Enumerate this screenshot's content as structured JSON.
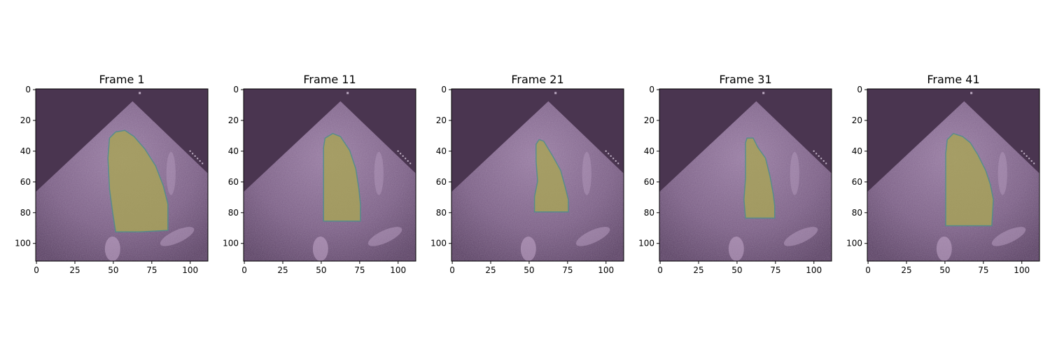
{
  "figure": {
    "panels": [
      {
        "title": "Frame 1"
      },
      {
        "title": "Frame 11"
      },
      {
        "title": "Frame 21"
      },
      {
        "title": "Frame 31"
      },
      {
        "title": "Frame 41"
      }
    ],
    "x_ticks": [
      "0",
      "25",
      "50",
      "75",
      "100"
    ],
    "y_ticks": [
      "0",
      "20",
      "40",
      "60",
      "80",
      "100"
    ],
    "image_extent": 112,
    "colors": {
      "background": "#4a3550",
      "ultrasound_tissue": "#8c6f96",
      "bright_tissue": "#c4a9cc",
      "segmentation_fill": "#a7a25a",
      "segmentation_edge": "#4e8f8a"
    },
    "segmentation_masks": [
      [
        [
          52,
          28
        ],
        [
          58,
          27
        ],
        [
          64,
          31
        ],
        [
          71,
          39
        ],
        [
          78,
          50
        ],
        [
          83,
          63
        ],
        [
          86,
          75
        ],
        [
          86,
          92
        ],
        [
          68,
          93
        ],
        [
          52,
          93
        ],
        [
          50,
          80
        ],
        [
          48,
          65
        ],
        [
          47,
          45
        ],
        [
          48,
          32
        ]
      ],
      [
        [
          53,
          32
        ],
        [
          58,
          29
        ],
        [
          63,
          31
        ],
        [
          69,
          40
        ],
        [
          73,
          52
        ],
        [
          75,
          65
        ],
        [
          76,
          75
        ],
        [
          76,
          86
        ],
        [
          64,
          86
        ],
        [
          52,
          86
        ],
        [
          52,
          70
        ],
        [
          52,
          50
        ],
        [
          52,
          38
        ]
      ],
      [
        [
          55,
          36
        ],
        [
          57,
          33
        ],
        [
          60,
          34
        ],
        [
          63,
          39
        ],
        [
          66,
          44
        ],
        [
          71,
          53
        ],
        [
          74,
          64
        ],
        [
          76,
          72
        ],
        [
          76,
          80
        ],
        [
          66,
          80
        ],
        [
          54,
          80
        ],
        [
          54,
          70
        ],
        [
          56,
          60
        ],
        [
          55,
          47
        ]
      ],
      [
        [
          56,
          35
        ],
        [
          57,
          32
        ],
        [
          61,
          32
        ],
        [
          64,
          38
        ],
        [
          69,
          45
        ],
        [
          72,
          57
        ],
        [
          74,
          68
        ],
        [
          75,
          76
        ],
        [
          75,
          84
        ],
        [
          66,
          84
        ],
        [
          56,
          84
        ],
        [
          55,
          72
        ],
        [
          56,
          58
        ],
        [
          56,
          45
        ]
      ],
      [
        [
          52,
          33
        ],
        [
          56,
          29
        ],
        [
          62,
          31
        ],
        [
          67,
          35
        ],
        [
          72,
          43
        ],
        [
          77,
          53
        ],
        [
          80,
          62
        ],
        [
          82,
          72
        ],
        [
          81,
          89
        ],
        [
          67,
          89
        ],
        [
          51,
          89
        ],
        [
          51,
          74
        ],
        [
          51,
          58
        ],
        [
          51,
          42
        ]
      ]
    ]
  }
}
